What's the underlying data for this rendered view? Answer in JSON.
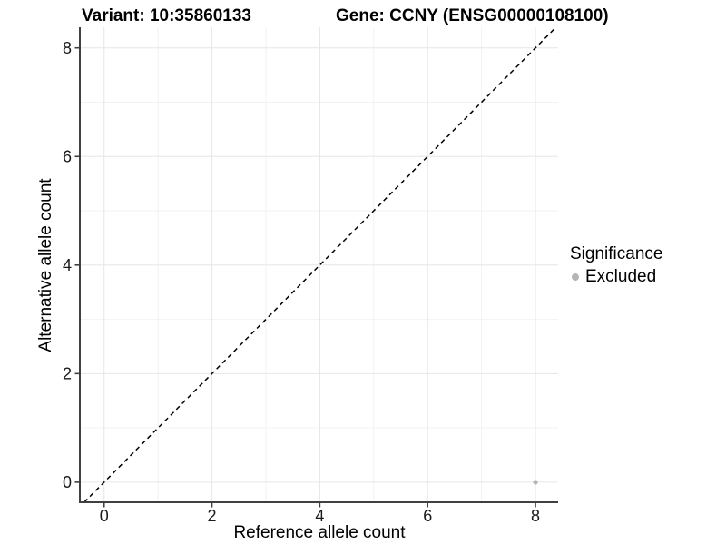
{
  "chart_data": {
    "type": "scatter",
    "title_left": "Variant: 10:35860133",
    "title_right": "Gene: CCNY (ENSG00000108100)",
    "xlabel": "Reference allele count",
    "ylabel": "Alternative allele count",
    "x_ticks": [
      0,
      2,
      4,
      6,
      8
    ],
    "y_ticks": [
      0,
      2,
      4,
      6,
      8
    ],
    "x_minor": [
      1,
      3,
      5,
      7
    ],
    "y_minor": [
      1,
      3,
      5,
      7
    ],
    "xlim": [
      -0.45,
      8.42
    ],
    "ylim": [
      -0.37,
      8.38
    ],
    "grid": true,
    "points": [
      {
        "x": 8,
        "y": 0,
        "significance": "Excluded"
      }
    ],
    "identity_line": {
      "slope": 1,
      "intercept": 0,
      "style": "dashed"
    },
    "legend": {
      "title": "Significance",
      "position": "right",
      "entries": [
        {
          "label": "Excluded",
          "color": "#b5b5b5"
        }
      ]
    },
    "colors": {
      "point": "#b5b5b5",
      "grid_major": "#e6e6e6",
      "grid_minor": "#f2f2f2",
      "axis_line": "#404040",
      "tick_text": "#1a1a1a",
      "abline": "#000000"
    }
  }
}
